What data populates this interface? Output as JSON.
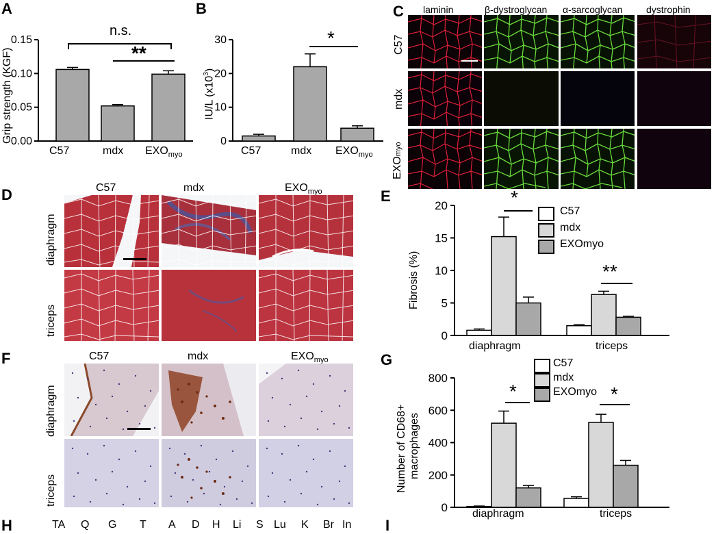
{
  "panel_letters": {
    "A": "A",
    "B": "B",
    "C": "C",
    "D": "D",
    "E": "E",
    "F": "F",
    "G": "G",
    "H": "H",
    "I": "I"
  },
  "panel_A": {
    "ylabel": "Grip strength (KGF)",
    "ns_label": "n.s.",
    "sig_label": "**",
    "ticks": [
      "0.00",
      "0.05",
      "0.10",
      "0.15"
    ],
    "categories": [
      "C57",
      "mdx",
      "EXO"
    ],
    "sub": "myo"
  },
  "panel_B": {
    "ylabel_main": "IU/L (x10",
    "ylabel_sup": "3",
    "ylabel_end": ")",
    "sig_label": "*",
    "ticks": [
      "0",
      "10",
      "20",
      "30"
    ],
    "categories": [
      "C57",
      "mdx",
      "EXO"
    ],
    "sub": "myo"
  },
  "panel_C": {
    "columns": [
      "laminin",
      "β-dystroglycan",
      "α-sarcoglycan",
      "dystrophin"
    ],
    "rows": [
      "C57",
      "mdx",
      "EXO"
    ],
    "row_sub": "myo"
  },
  "panel_D": {
    "columns": [
      "C57",
      "mdx",
      "EXO"
    ],
    "col_sub": "myo",
    "rows": [
      "diaphragm",
      "triceps"
    ]
  },
  "panel_E": {
    "ylabel": "Fibrosis (%)",
    "ticks": [
      "0",
      "5",
      "10",
      "15",
      "20"
    ],
    "groups": [
      "diaphragm",
      "triceps"
    ],
    "legend": [
      "C57",
      "mdx",
      "EXOmyo"
    ],
    "sig_diaphragm": "*",
    "sig_triceps": "**"
  },
  "panel_F": {
    "columns": [
      "C57",
      "mdx",
      "EXO"
    ],
    "col_sub": "myo",
    "rows": [
      "diaphragm",
      "triceps"
    ]
  },
  "panel_G": {
    "ylabel_1": "Number of CD68+",
    "ylabel_2": "macrophages",
    "ticks": [
      "0",
      "200",
      "400",
      "600",
      "800"
    ],
    "groups": [
      "diaphragm",
      "triceps"
    ],
    "legend": [
      "C57",
      "mdx",
      "EXOmyo"
    ],
    "sig_diaphragm": "*",
    "sig_triceps": "*"
  },
  "panel_H": {
    "column_labels": [
      "TA",
      "Q",
      "G",
      "T",
      "A",
      "D",
      "H",
      "Li",
      "S",
      "Lu",
      "K",
      "Br",
      "In"
    ]
  },
  "chart_data": [
    {
      "type": "bar",
      "panel": "A",
      "categories": [
        "C57",
        "mdx",
        "EXOmyo"
      ],
      "values": [
        0.106,
        0.052,
        0.099
      ],
      "errors": [
        0.003,
        0.002,
        0.005
      ],
      "ylabel": "Grip strength (KGF)",
      "ylim": [
        0,
        0.15
      ],
      "colors": [
        "#a8a8a8"
      ]
    },
    {
      "type": "bar",
      "panel": "B",
      "categories": [
        "C57",
        "mdx",
        "EXOmyo"
      ],
      "values": [
        1.5,
        22,
        3.8
      ],
      "errors": [
        0.5,
        3.8,
        0.7
      ],
      "ylabel": "IU/L (x10^3)",
      "ylim": [
        0,
        30
      ],
      "colors": [
        "#a8a8a8"
      ]
    },
    {
      "type": "bar",
      "panel": "E",
      "categories": [
        "diaphragm",
        "triceps"
      ],
      "series": [
        {
          "name": "C57",
          "values": [
            0.8,
            1.5
          ],
          "errors": [
            0.2,
            0.15
          ],
          "color": "#ffffff"
        },
        {
          "name": "mdx",
          "values": [
            15.2,
            6.3
          ],
          "errors": [
            3.0,
            0.5
          ],
          "color": "#d8d8d8"
        },
        {
          "name": "EXOmyo",
          "values": [
            5.0,
            2.8
          ],
          "errors": [
            0.9,
            0.15
          ],
          "color": "#a8a8a8"
        }
      ],
      "ylabel": "Fibrosis (%)",
      "ylim": [
        0,
        20
      ]
    },
    {
      "type": "bar",
      "panel": "G",
      "categories": [
        "diaphragm",
        "triceps"
      ],
      "series": [
        {
          "name": "C57",
          "values": [
            5,
            55
          ],
          "errors": [
            3,
            10
          ],
          "color": "#ffffff"
        },
        {
          "name": "mdx",
          "values": [
            520,
            525
          ],
          "errors": [
            75,
            50
          ],
          "color": "#d8d8d8"
        },
        {
          "name": "EXOmyo",
          "values": [
            120,
            260
          ],
          "errors": [
            15,
            30
          ],
          "color": "#a8a8a8"
        }
      ],
      "ylabel": "Number of CD68+ macrophages",
      "ylim": [
        0,
        800
      ]
    }
  ]
}
